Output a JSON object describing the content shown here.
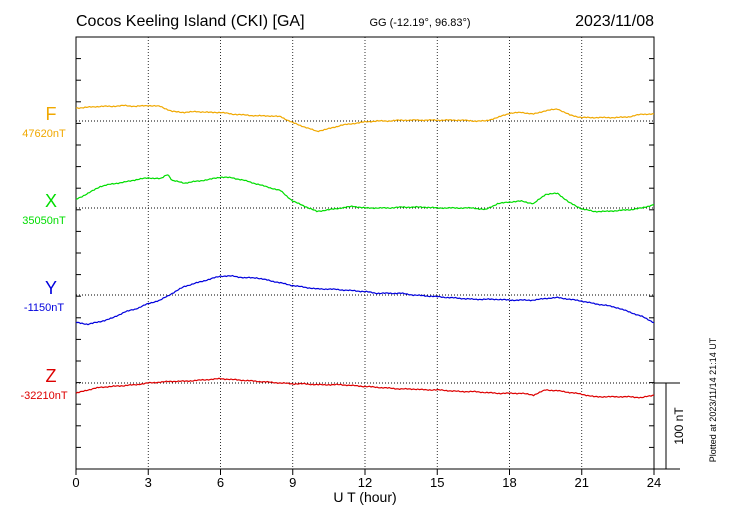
{
  "header": {
    "station": "Cocos Keeling Island (CKI)  [GA]",
    "coords": "GG (-12.19°,  96.83°)",
    "date": "2023/11/08"
  },
  "footer": {
    "plotted": "Plotted at 2023/11/14 21:14 UT"
  },
  "scale_bar": {
    "label": "100 nT"
  },
  "chart_data": {
    "type": "line",
    "title": "Cocos Keeling Island (CKI)  [GA]",
    "xlabel": "U T (hour)",
    "xlim": [
      0,
      24
    ],
    "xticks": [
      0,
      3,
      6,
      9,
      12,
      15,
      18,
      21,
      24
    ],
    "grid": true,
    "scale_nT": 100,
    "series": [
      {
        "name": "F",
        "baseline_label": "47620nT",
        "baseline": 47620,
        "color": "#f0a800",
        "x": [
          0,
          0.5,
          1,
          1.5,
          2,
          2.5,
          3,
          3.5,
          4,
          4.5,
          5,
          5.5,
          6,
          6.5,
          7,
          7.5,
          8,
          8.5,
          9,
          9.5,
          10,
          10.5,
          11,
          11.5,
          12,
          12.5,
          13,
          13.5,
          14,
          14.5,
          15,
          15.5,
          16,
          16.5,
          17,
          17.5,
          18,
          18.5,
          19,
          19.5,
          20,
          20.5,
          21,
          21.5,
          22,
          22.5,
          23,
          23.5,
          24
        ],
        "values": [
          47635,
          47636,
          47637,
          47637,
          47638,
          47637,
          47638,
          47637,
          47631,
          47630,
          47631,
          47630,
          47630,
          47628,
          47627,
          47626,
          47626,
          47625,
          47618,
          47613,
          47608,
          47611,
          47615,
          47617,
          47619,
          47620,
          47620,
          47621,
          47621,
          47621,
          47621,
          47621,
          47621,
          47620,
          47620,
          47624,
          47629,
          47630,
          47628,
          47632,
          47634,
          47627,
          47624,
          47624,
          47624,
          47624,
          47625,
          47628,
          47628
        ]
      },
      {
        "name": "X",
        "baseline_label": "35050nT",
        "baseline": 35050,
        "color": "#00dd00",
        "x": [
          0,
          0.5,
          1,
          1.5,
          2,
          2.5,
          3,
          3.5,
          3.8,
          4,
          4.5,
          5,
          5.5,
          6,
          6.5,
          7,
          7.5,
          8,
          8.5,
          9,
          9.5,
          10,
          10.5,
          11,
          11.5,
          12,
          12.5,
          13,
          13.5,
          14,
          14.5,
          15,
          15.5,
          16,
          16.5,
          17,
          17.5,
          18,
          18.5,
          19,
          19.5,
          20,
          20.5,
          21,
          21.5,
          22,
          22.5,
          23,
          23.5,
          24
        ],
        "values": [
          35060,
          35067,
          35075,
          35078,
          35080,
          35083,
          35085,
          35084,
          35089,
          35082,
          35079,
          35081,
          35083,
          35086,
          35085,
          35082,
          35078,
          35074,
          35070,
          35058,
          35052,
          35046,
          35048,
          35050,
          35052,
          35050,
          35050,
          35050,
          35051,
          35051,
          35051,
          35050,
          35050,
          35050,
          35050,
          35048,
          35055,
          35057,
          35058,
          35055,
          35066,
          35067,
          35056,
          35049,
          35046,
          35046,
          35047,
          35048,
          35050,
          35054
        ]
      },
      {
        "name": "Y",
        "baseline_label": "-1150nT",
        "baseline": -1150,
        "color": "#0000dd",
        "x": [
          0,
          0.5,
          1,
          1.5,
          2,
          2.5,
          3,
          3.5,
          4,
          4.5,
          5,
          5.5,
          6,
          6.5,
          7,
          7.5,
          8,
          8.5,
          9,
          9.5,
          10,
          10.5,
          11,
          11.5,
          12,
          12.5,
          13,
          13.5,
          14,
          14.5,
          15,
          15.5,
          16,
          16.5,
          17,
          17.5,
          18,
          18.5,
          19,
          19.5,
          20,
          20.5,
          21,
          21.5,
          22,
          22.5,
          23,
          23.5,
          24
        ],
        "values": [
          -1182,
          -1184,
          -1181,
          -1177,
          -1170,
          -1166,
          -1160,
          -1156,
          -1148,
          -1140,
          -1136,
          -1132,
          -1128,
          -1128,
          -1130,
          -1130,
          -1133,
          -1136,
          -1139,
          -1141,
          -1143,
          -1143,
          -1144,
          -1145,
          -1146,
          -1148,
          -1148,
          -1148,
          -1150,
          -1151,
          -1152,
          -1153,
          -1154,
          -1155,
          -1155,
          -1155,
          -1156,
          -1156,
          -1156,
          -1154,
          -1153,
          -1155,
          -1157,
          -1160,
          -1162,
          -1165,
          -1170,
          -1175,
          -1182
        ]
      },
      {
        "name": "Z",
        "baseline_label": "-32210nT",
        "baseline": -32210,
        "color": "#dd0000",
        "x": [
          0,
          0.5,
          1,
          1.5,
          2,
          2.5,
          3,
          3.5,
          4,
          4.5,
          5,
          5.5,
          6,
          6.5,
          7,
          7.5,
          8,
          8.5,
          9,
          9.5,
          10,
          10.5,
          11,
          11.5,
          12,
          12.5,
          13,
          13.5,
          14,
          14.5,
          15,
          15.5,
          16,
          16.5,
          17,
          17.5,
          18,
          18.5,
          19,
          19.5,
          20,
          20.5,
          21,
          21.5,
          22,
          22.5,
          23,
          23.5,
          24
        ],
        "values": [
          -32222,
          -32218,
          -32215,
          -32214,
          -32213,
          -32212,
          -32210,
          -32209,
          -32208,
          -32208,
          -32207,
          -32206,
          -32205,
          -32206,
          -32207,
          -32208,
          -32209,
          -32210,
          -32211,
          -32211,
          -32212,
          -32212,
          -32212,
          -32213,
          -32214,
          -32215,
          -32216,
          -32217,
          -32217,
          -32218,
          -32218,
          -32219,
          -32220,
          -32220,
          -32221,
          -32222,
          -32222,
          -32222,
          -32224,
          -32218,
          -32219,
          -32221,
          -32223,
          -32226,
          -32226,
          -32226,
          -32226,
          -32227,
          -32224
        ]
      }
    ]
  }
}
